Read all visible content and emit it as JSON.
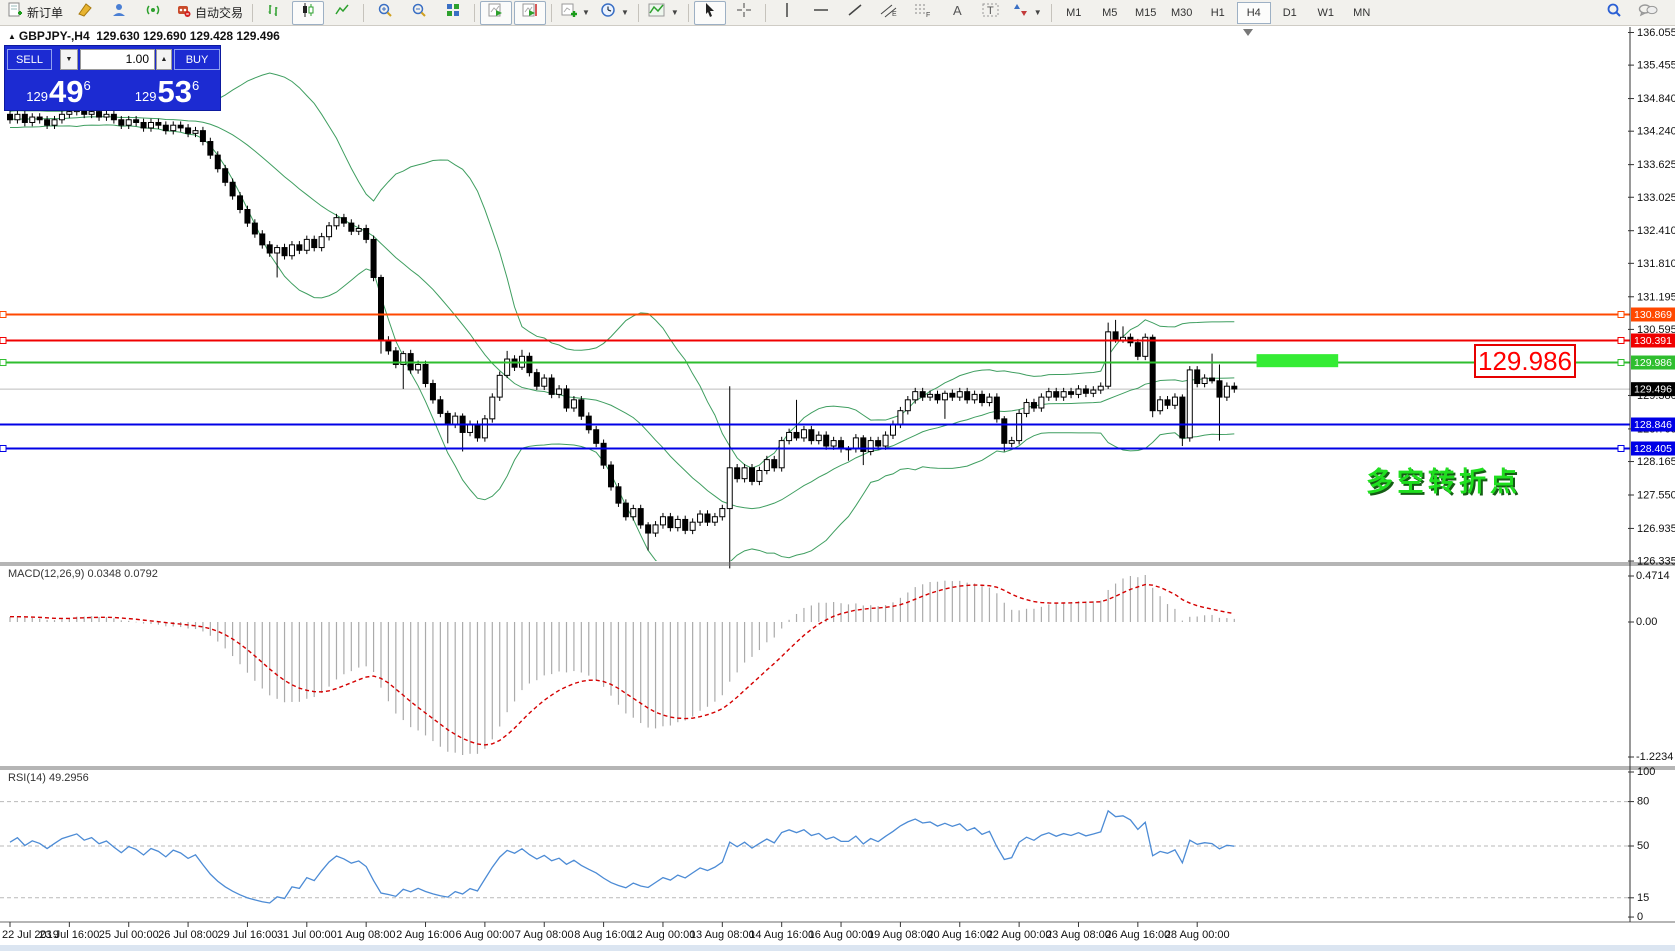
{
  "toolbar": {
    "new_order_label": "新订单",
    "autotrading_label": "自动交易",
    "timeframes": [
      "M1",
      "M5",
      "M15",
      "M30",
      "H1",
      "H4",
      "D1",
      "W1",
      "MN"
    ],
    "active_timeframe": "H4"
  },
  "title": {
    "symbol_period": "GBPJPY-,H4",
    "ohlc": "129.630 129.690 129.428 129.496"
  },
  "trade_panel": {
    "sell_label": "SELL",
    "buy_label": "BUY",
    "volume": "1.00",
    "sell_price": {
      "prefix": "129",
      "big": "49",
      "sup": "6"
    },
    "buy_price": {
      "prefix": "129",
      "big": "53",
      "sup": "6"
    }
  },
  "annotations": {
    "big_price": "129.986",
    "pivot_label": "多空转折点",
    "highlight_box": {
      "price_top": 130.14,
      "price_bottom": 129.9,
      "x_from_candle": 168,
      "x_to_candle": 179
    }
  },
  "axis": {
    "y_ticks": [
      "136.055",
      "135.455",
      "134.840",
      "134.240",
      "133.625",
      "133.025",
      "132.410",
      "131.810",
      "131.195",
      "130.595",
      "129.380",
      "128.765",
      "128.165",
      "127.550",
      "126.935",
      "126.335"
    ],
    "x_labels": [
      "22 Jul 2019",
      "23 Jul 16:00",
      "25 Jul 00:00",
      "26 Jul 08:00",
      "29 Jul 16:00",
      "31 Jul 00:00",
      "1 Aug 08:00",
      "2 Aug 16:00",
      "6 Aug 00:00",
      "7 Aug 08:00",
      "8 Aug 16:00",
      "12 Aug 00:00",
      "13 Aug 08:00",
      "14 Aug 16:00",
      "16 Aug 00:00",
      "19 Aug 08:00",
      "20 Aug 16:00",
      "22 Aug 00:00",
      "23 Aug 08:00",
      "26 Aug 16:00",
      "28 Aug 00:00"
    ]
  },
  "hlines": [
    {
      "value": 130.869,
      "label": "130.869",
      "color": "#ff4800",
      "handle": true
    },
    {
      "value": 130.391,
      "label": "130.391",
      "color": "#f00000",
      "handle": true
    },
    {
      "value": 129.986,
      "label": "129.986",
      "color": "#2fbe2f",
      "handle": true
    },
    {
      "value": 128.846,
      "label": "128.846",
      "color": "#0000e6",
      "handle": false
    },
    {
      "value": 128.405,
      "label": "128.405",
      "color": "#0000e6",
      "handle": true
    }
  ],
  "current_price": {
    "value": 129.496,
    "label": "129.496",
    "line_color": "#bdbdbd",
    "box_color": "#000000"
  },
  "indicators": {
    "macd": {
      "label": "MACD(12,26,9)",
      "value_main": "0.0348",
      "value_signal": "0.0792",
      "scale_labels": [
        "0.4714",
        "0.00",
        "-1.2234"
      ],
      "hist_color": "#ababab",
      "signal_color": "#d40000"
    },
    "rsi": {
      "label": "RSI(14)",
      "value": "49.2956",
      "scale_labels": [
        "100",
        "80",
        "50",
        "15",
        "0"
      ],
      "levels": [
        80,
        50,
        15
      ],
      "line_color": "#4c8bd5"
    }
  },
  "colors": {
    "band_green": "#3f9e60",
    "highlight_green": "#35ec35",
    "candle_up": "#ffffff",
    "candle_down": "#000000",
    "panel_blue": "#1c2bd2"
  },
  "chart_data": {
    "type": "candlestick",
    "symbol": "GBPJPY-",
    "timeframe": "H4",
    "bollinger": {
      "period": 20,
      "deviation": 2
    },
    "warmup_closes": [
      134.3,
      134.45,
      134.35,
      134.5,
      134.4,
      134.3,
      134.45,
      134.55,
      134.4,
      134.5,
      134.35,
      134.45,
      134.55,
      134.45,
      134.6,
      134.5,
      134.4,
      134.5,
      134.45,
      134.55
    ],
    "closes": [
      134.45,
      134.55,
      134.4,
      134.5,
      134.45,
      134.35,
      134.45,
      134.55,
      134.6,
      134.65,
      134.55,
      134.6,
      134.5,
      134.55,
      134.45,
      134.35,
      134.45,
      134.4,
      134.3,
      134.4,
      134.35,
      134.25,
      134.35,
      134.3,
      134.2,
      134.25,
      134.05,
      133.8,
      133.55,
      133.3,
      133.05,
      132.8,
      132.55,
      132.35,
      132.15,
      132.0,
      132.1,
      131.95,
      132.15,
      132.05,
      132.25,
      132.1,
      132.3,
      132.5,
      132.65,
      132.55,
      132.4,
      132.45,
      132.25,
      131.55,
      130.4,
      130.2,
      129.95,
      130.15,
      129.85,
      129.95,
      129.6,
      129.3,
      129.05,
      128.85,
      129.0,
      128.7,
      128.85,
      128.6,
      128.95,
      129.35,
      129.75,
      130.05,
      129.9,
      130.1,
      129.8,
      129.55,
      129.7,
      129.4,
      129.5,
      129.15,
      129.3,
      129.0,
      128.75,
      128.5,
      128.1,
      127.7,
      127.4,
      127.15,
      127.3,
      127.0,
      126.85,
      127.0,
      127.15,
      126.95,
      127.1,
      126.9,
      127.05,
      127.2,
      127.05,
      127.15,
      127.3,
      128.05,
      127.85,
      128.05,
      127.8,
      128.0,
      128.2,
      128.05,
      128.55,
      128.7,
      128.6,
      128.75,
      128.55,
      128.65,
      128.45,
      128.55,
      128.4,
      128.4,
      128.6,
      128.35,
      128.55,
      128.45,
      128.65,
      128.85,
      129.1,
      129.3,
      129.45,
      129.35,
      129.4,
      129.3,
      129.42,
      129.35,
      129.45,
      129.3,
      129.4,
      129.25,
      129.35,
      128.95,
      128.5,
      128.55,
      129.05,
      129.25,
      129.15,
      129.35,
      129.45,
      129.35,
      129.45,
      129.4,
      129.5,
      129.42,
      129.48,
      129.55,
      130.55,
      130.4,
      130.45,
      130.35,
      130.1,
      130.45,
      129.1,
      129.3,
      129.2,
      129.35,
      128.6,
      129.85,
      129.6,
      129.7,
      129.65,
      129.35,
      129.55,
      129.5
    ],
    "default_wick": 0.07,
    "wick_overrides": {
      "36": [
        0.05,
        0.45
      ],
      "50": [
        0.05,
        0.25
      ],
      "53": [
        0.05,
        0.45
      ],
      "59": [
        0.05,
        0.35
      ],
      "61": [
        0.05,
        0.35
      ],
      "67": [
        0.15,
        0.05
      ],
      "69": [
        0.12,
        0.05
      ],
      "86": [
        0.05,
        0.32
      ],
      "97": [
        1.5,
        1.1
      ],
      "106": [
        0.6,
        0.05
      ],
      "113": [
        0.05,
        0.22
      ],
      "115": [
        0.05,
        0.25
      ],
      "126": [
        0.05,
        0.35
      ],
      "134": [
        0.05,
        0.15
      ],
      "148": [
        0.17,
        0.05
      ],
      "149": [
        0.22,
        0.05
      ],
      "150": [
        0.2,
        0.05
      ],
      "154": [
        0.05,
        0.12
      ],
      "158": [
        0.05,
        0.15
      ],
      "162": [
        0.45,
        0.05
      ],
      "163": [
        0.3,
        0.8
      ]
    }
  }
}
